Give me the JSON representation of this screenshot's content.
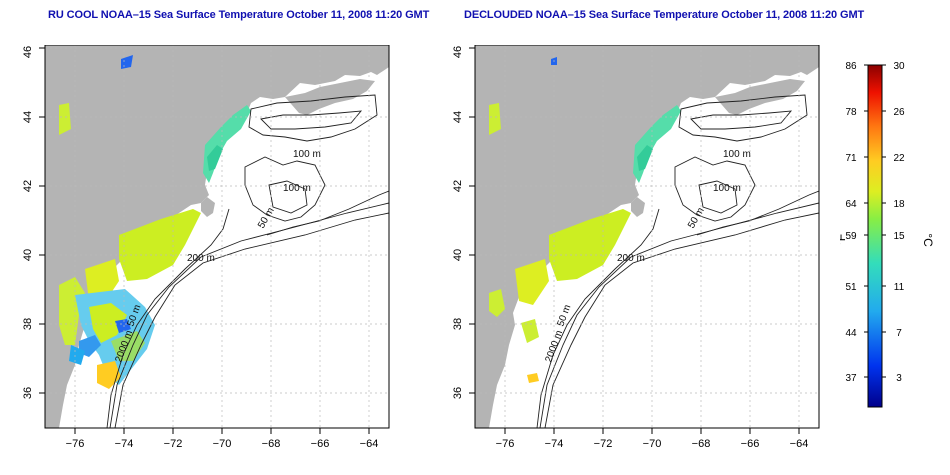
{
  "titles": {
    "left": "RU COOL NOAA–15 Sea Surface Temperature October 11, 2008 11:20 GMT",
    "right": "DECLOUDED NOAA–15 Sea Surface Temperature October 11, 2008 11:20 GMT"
  },
  "axes": {
    "x_ticks": [
      "−76",
      "−74",
      "−72",
      "−70",
      "−68",
      "−66",
      "−64"
    ],
    "y_ticks": [
      "36",
      "38",
      "40",
      "42",
      "44",
      "46"
    ]
  },
  "contour_labels": {
    "m100_a": "100 m",
    "m100_b": "100 m",
    "m50_gom": "50 m",
    "m200": "200 m",
    "m50_shelf": "50 m",
    "m2000": "2000 m"
  },
  "colorbar": {
    "unit_f": "°F",
    "unit_c": "°C",
    "f_ticks": [
      "86",
      "78",
      "71",
      "64",
      "59",
      "51",
      "44",
      "37"
    ],
    "c_ticks": [
      "30",
      "26",
      "22",
      "18",
      "15",
      "11",
      "7",
      "3"
    ]
  },
  "colors": {
    "land": "#b4b4b4",
    "ocean": "#ffffff",
    "sst_warm_green": "#ccee22",
    "sst_cool_green": "#55dd88",
    "sst_blue": "#2266ee",
    "sst_yellow": "#ffcc22"
  }
}
